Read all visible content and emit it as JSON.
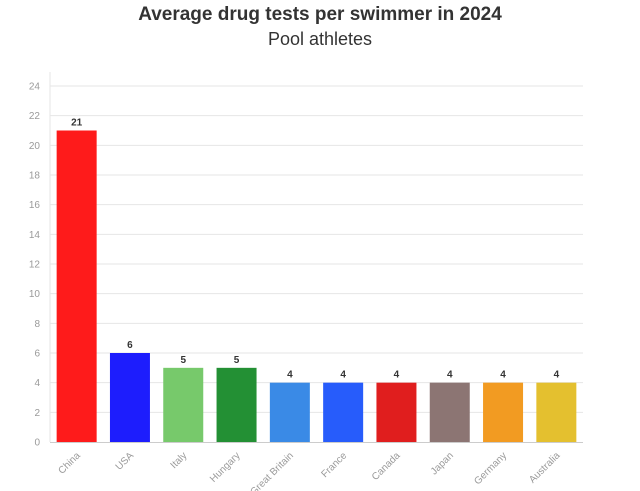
{
  "chart_data": {
    "type": "bar",
    "title": "Average drug tests per swimmer in 2024",
    "subtitle": "Pool athletes",
    "xlabel": "",
    "ylabel": "",
    "ylim": [
      0,
      24
    ],
    "yticks": [
      0,
      2,
      4,
      6,
      8,
      10,
      12,
      14,
      16,
      18,
      20,
      22,
      24
    ],
    "grid": true,
    "legend": "none",
    "categories": [
      "China",
      "USA",
      "Italy",
      "Hungary",
      "Great Britain",
      "France",
      "Canada",
      "Japan",
      "Germany",
      "Australia"
    ],
    "values": [
      21,
      6,
      5,
      5,
      4,
      4,
      4,
      4,
      4,
      4
    ],
    "data_labels": [
      "21",
      "6",
      "5",
      "5",
      "4",
      "4",
      "4",
      "4",
      "4",
      "4"
    ],
    "colors": [
      "#fe1b1b",
      "#1d1dfd",
      "#77c96b",
      "#239034",
      "#3a8ae6",
      "#275cfb",
      "#e01e1e",
      "#8c7573",
      "#f29b22",
      "#e4c02f"
    ]
  }
}
